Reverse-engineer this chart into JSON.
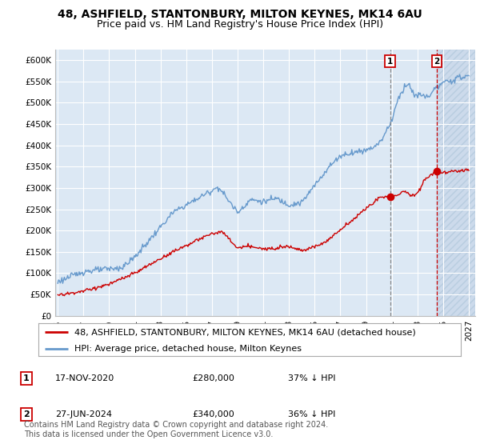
{
  "title": "48, ASHFIELD, STANTONBURY, MILTON KEYNES, MK14 6AU",
  "subtitle": "Price paid vs. HM Land Registry's House Price Index (HPI)",
  "ylabel_ticks": [
    "£0",
    "£50K",
    "£100K",
    "£150K",
    "£200K",
    "£250K",
    "£300K",
    "£350K",
    "£400K",
    "£450K",
    "£500K",
    "£550K",
    "£600K"
  ],
  "ytick_values": [
    0,
    50000,
    100000,
    150000,
    200000,
    250000,
    300000,
    350000,
    400000,
    450000,
    500000,
    550000,
    600000
  ],
  "ylim": [
    0,
    625000
  ],
  "xlim_start": 1994.8,
  "xlim_end": 2027.5,
  "hpi_color": "#6699cc",
  "price_color": "#cc0000",
  "marker1_x": 2020.88,
  "marker1_y": 280000,
  "marker2_x": 2024.5,
  "marker2_y": 340000,
  "vline1_x": 2020.88,
  "vline2_x": 2024.5,
  "legend_line1": "48, ASHFIELD, STANTONBURY, MILTON KEYNES, MK14 6AU (detached house)",
  "legend_line2": "HPI: Average price, detached house, Milton Keynes",
  "table_row1": [
    "1",
    "17-NOV-2020",
    "£280,000",
    "37% ↓ HPI"
  ],
  "table_row2": [
    "2",
    "27-JUN-2024",
    "£340,000",
    "36% ↓ HPI"
  ],
  "footer": "Contains HM Land Registry data © Crown copyright and database right 2024.\nThis data is licensed under the Open Government Licence v3.0.",
  "background_color": "#ffffff",
  "plot_bg_color": "#dce8f4",
  "future_bg_color": "#ccdaeb",
  "hatch_color": "#b8cde0",
  "grid_color": "#ffffff",
  "title_fontsize": 10,
  "subtitle_fontsize": 9,
  "tick_fontsize": 7.5,
  "legend_fontsize": 8,
  "table_fontsize": 8,
  "footer_fontsize": 7
}
